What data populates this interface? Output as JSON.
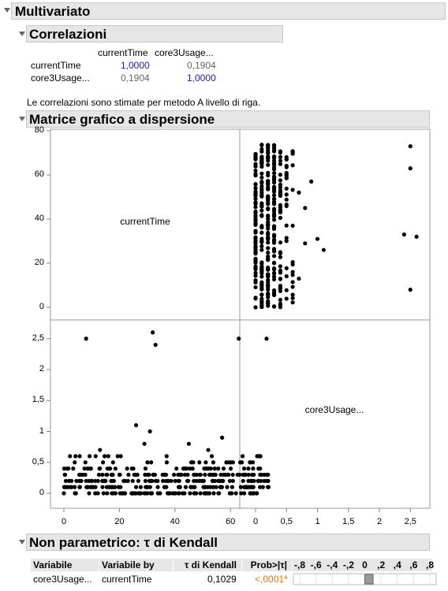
{
  "titles": {
    "main": "Multivariato",
    "correlations": "Correlazioni",
    "scatter": "Matrice grafico a dispersione",
    "kendall": "Non parametrico: τ di Kendall"
  },
  "correlations": {
    "col_headers": [
      "currentTime",
      "core3Usage..."
    ],
    "rows": [
      {
        "label": "currentTime",
        "values": [
          "1,0000",
          "0,1904"
        ]
      },
      {
        "label": "core3Usage...",
        "values": [
          "0,1904",
          "1,0000"
        ]
      }
    ],
    "note": "Le correlazioni sono stimate per metodo A livello di riga."
  },
  "scatter": {
    "diag_labels": [
      "currentTime",
      "core3Usage..."
    ],
    "y1_ticks": [
      "80",
      "60",
      "40",
      "20",
      "0"
    ],
    "y2_ticks": [
      "2,5",
      "2",
      "1,5",
      "1",
      "0,5",
      "0"
    ],
    "x1_ticks": [
      "0",
      "20",
      "40",
      "60"
    ],
    "x2_ticks": [
      "0",
      "0,5",
      "1",
      "1,5",
      "2",
      "2,5"
    ]
  },
  "chart_data": {
    "type": "scatter",
    "xlabel": "currentTime",
    "ylabel": "core3Usage...",
    "xlim": [
      -4,
      76
    ],
    "ylim": [
      -0.1,
      2.8
    ],
    "outliers": [
      {
        "x": 8,
        "y": 2.5
      },
      {
        "x": 32,
        "y": 2.6
      },
      {
        "x": 33,
        "y": 2.4
      },
      {
        "x": 63,
        "y": 2.5
      },
      {
        "x": 73,
        "y": 2.5
      },
      {
        "x": 26,
        "y": 1.1
      },
      {
        "x": 31,
        "y": 1.0
      },
      {
        "x": 29,
        "y": 0.8
      },
      {
        "x": 57,
        "y": 0.9
      },
      {
        "x": 45,
        "y": 0.8
      },
      {
        "x": 13,
        "y": 0.7
      },
      {
        "x": 37,
        "y": 0.6
      },
      {
        "x": 52,
        "y": 0.7
      },
      {
        "x": 16,
        "y": 0.6
      }
    ],
    "cluster": {
      "x_range": [
        0,
        74
      ],
      "y_levels": [
        0,
        0.1,
        0.2,
        0.3,
        0.4,
        0.5,
        0.6
      ]
    }
  },
  "kendall": {
    "headers": [
      "Variabile",
      "Variabile by",
      "τ di Kendall",
      "Prob>|τ|"
    ],
    "scale": [
      "-,8",
      "-,6",
      "-,4",
      "-,2",
      "0",
      ",2",
      ",4",
      ",6",
      ",8"
    ],
    "row": {
      "var": "core3Usage...",
      "by": "currentTime",
      "tau": "0,1029",
      "prob": "<,0001*"
    },
    "tau_value": 0.1029
  }
}
